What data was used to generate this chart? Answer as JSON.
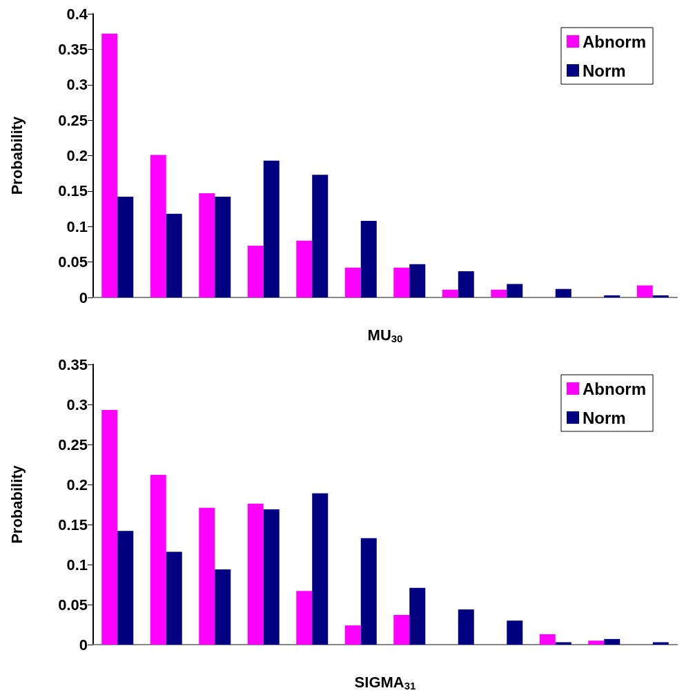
{
  "chart_data": [
    {
      "type": "bar",
      "xlabel": "MU$_{30}$",
      "ylabel": "Probability",
      "categories": [
        null,
        null,
        null,
        null,
        null,
        null,
        null,
        null,
        null,
        null,
        null,
        null
      ],
      "series": [
        {
          "name": "Abnorm",
          "color": "#ff00ff",
          "values": [
            0.372,
            0.201,
            0.147,
            0.073,
            0.08,
            0.042,
            0.042,
            0.011,
            0.011,
            0,
            0,
            0.017
          ]
        },
        {
          "name": "Norm",
          "color": "#000080",
          "values": [
            0.142,
            0.118,
            0.142,
            0.193,
            0.173,
            0.108,
            0.047,
            0.037,
            0.019,
            0.012,
            0.003,
            0.003
          ]
        }
      ],
      "ylim": [
        0,
        0.4
      ],
      "yticks": [
        0,
        0.05,
        0.1,
        0.15,
        0.2,
        0.25,
        0.3,
        0.35,
        0.4
      ],
      "grid": false,
      "legend": "top right"
    },
    {
      "type": "bar",
      "xlabel": "SIGMA$_{31}$",
      "ylabel": "Probability",
      "categories": [
        null,
        null,
        null,
        null,
        null,
        null,
        null,
        null,
        null,
        null,
        null,
        null
      ],
      "series": [
        {
          "name": "Abnorm",
          "color": "#ff00ff",
          "values": [
            0.293,
            0.212,
            0.171,
            0.176,
            0.067,
            0.024,
            0.037,
            0,
            0,
            0.013,
            0.005,
            0
          ]
        },
        {
          "name": "Norm",
          "color": "#000080",
          "values": [
            0.142,
            0.116,
            0.094,
            0.169,
            0.189,
            0.133,
            0.071,
            0.044,
            0.03,
            0.003,
            0.007,
            0.003
          ]
        }
      ],
      "ylim": [
        0,
        0.35
      ],
      "yticks": [
        0,
        0.05,
        0.1,
        0.15,
        0.2,
        0.25,
        0.3,
        0.35
      ],
      "grid": false,
      "legend": "top right"
    }
  ]
}
